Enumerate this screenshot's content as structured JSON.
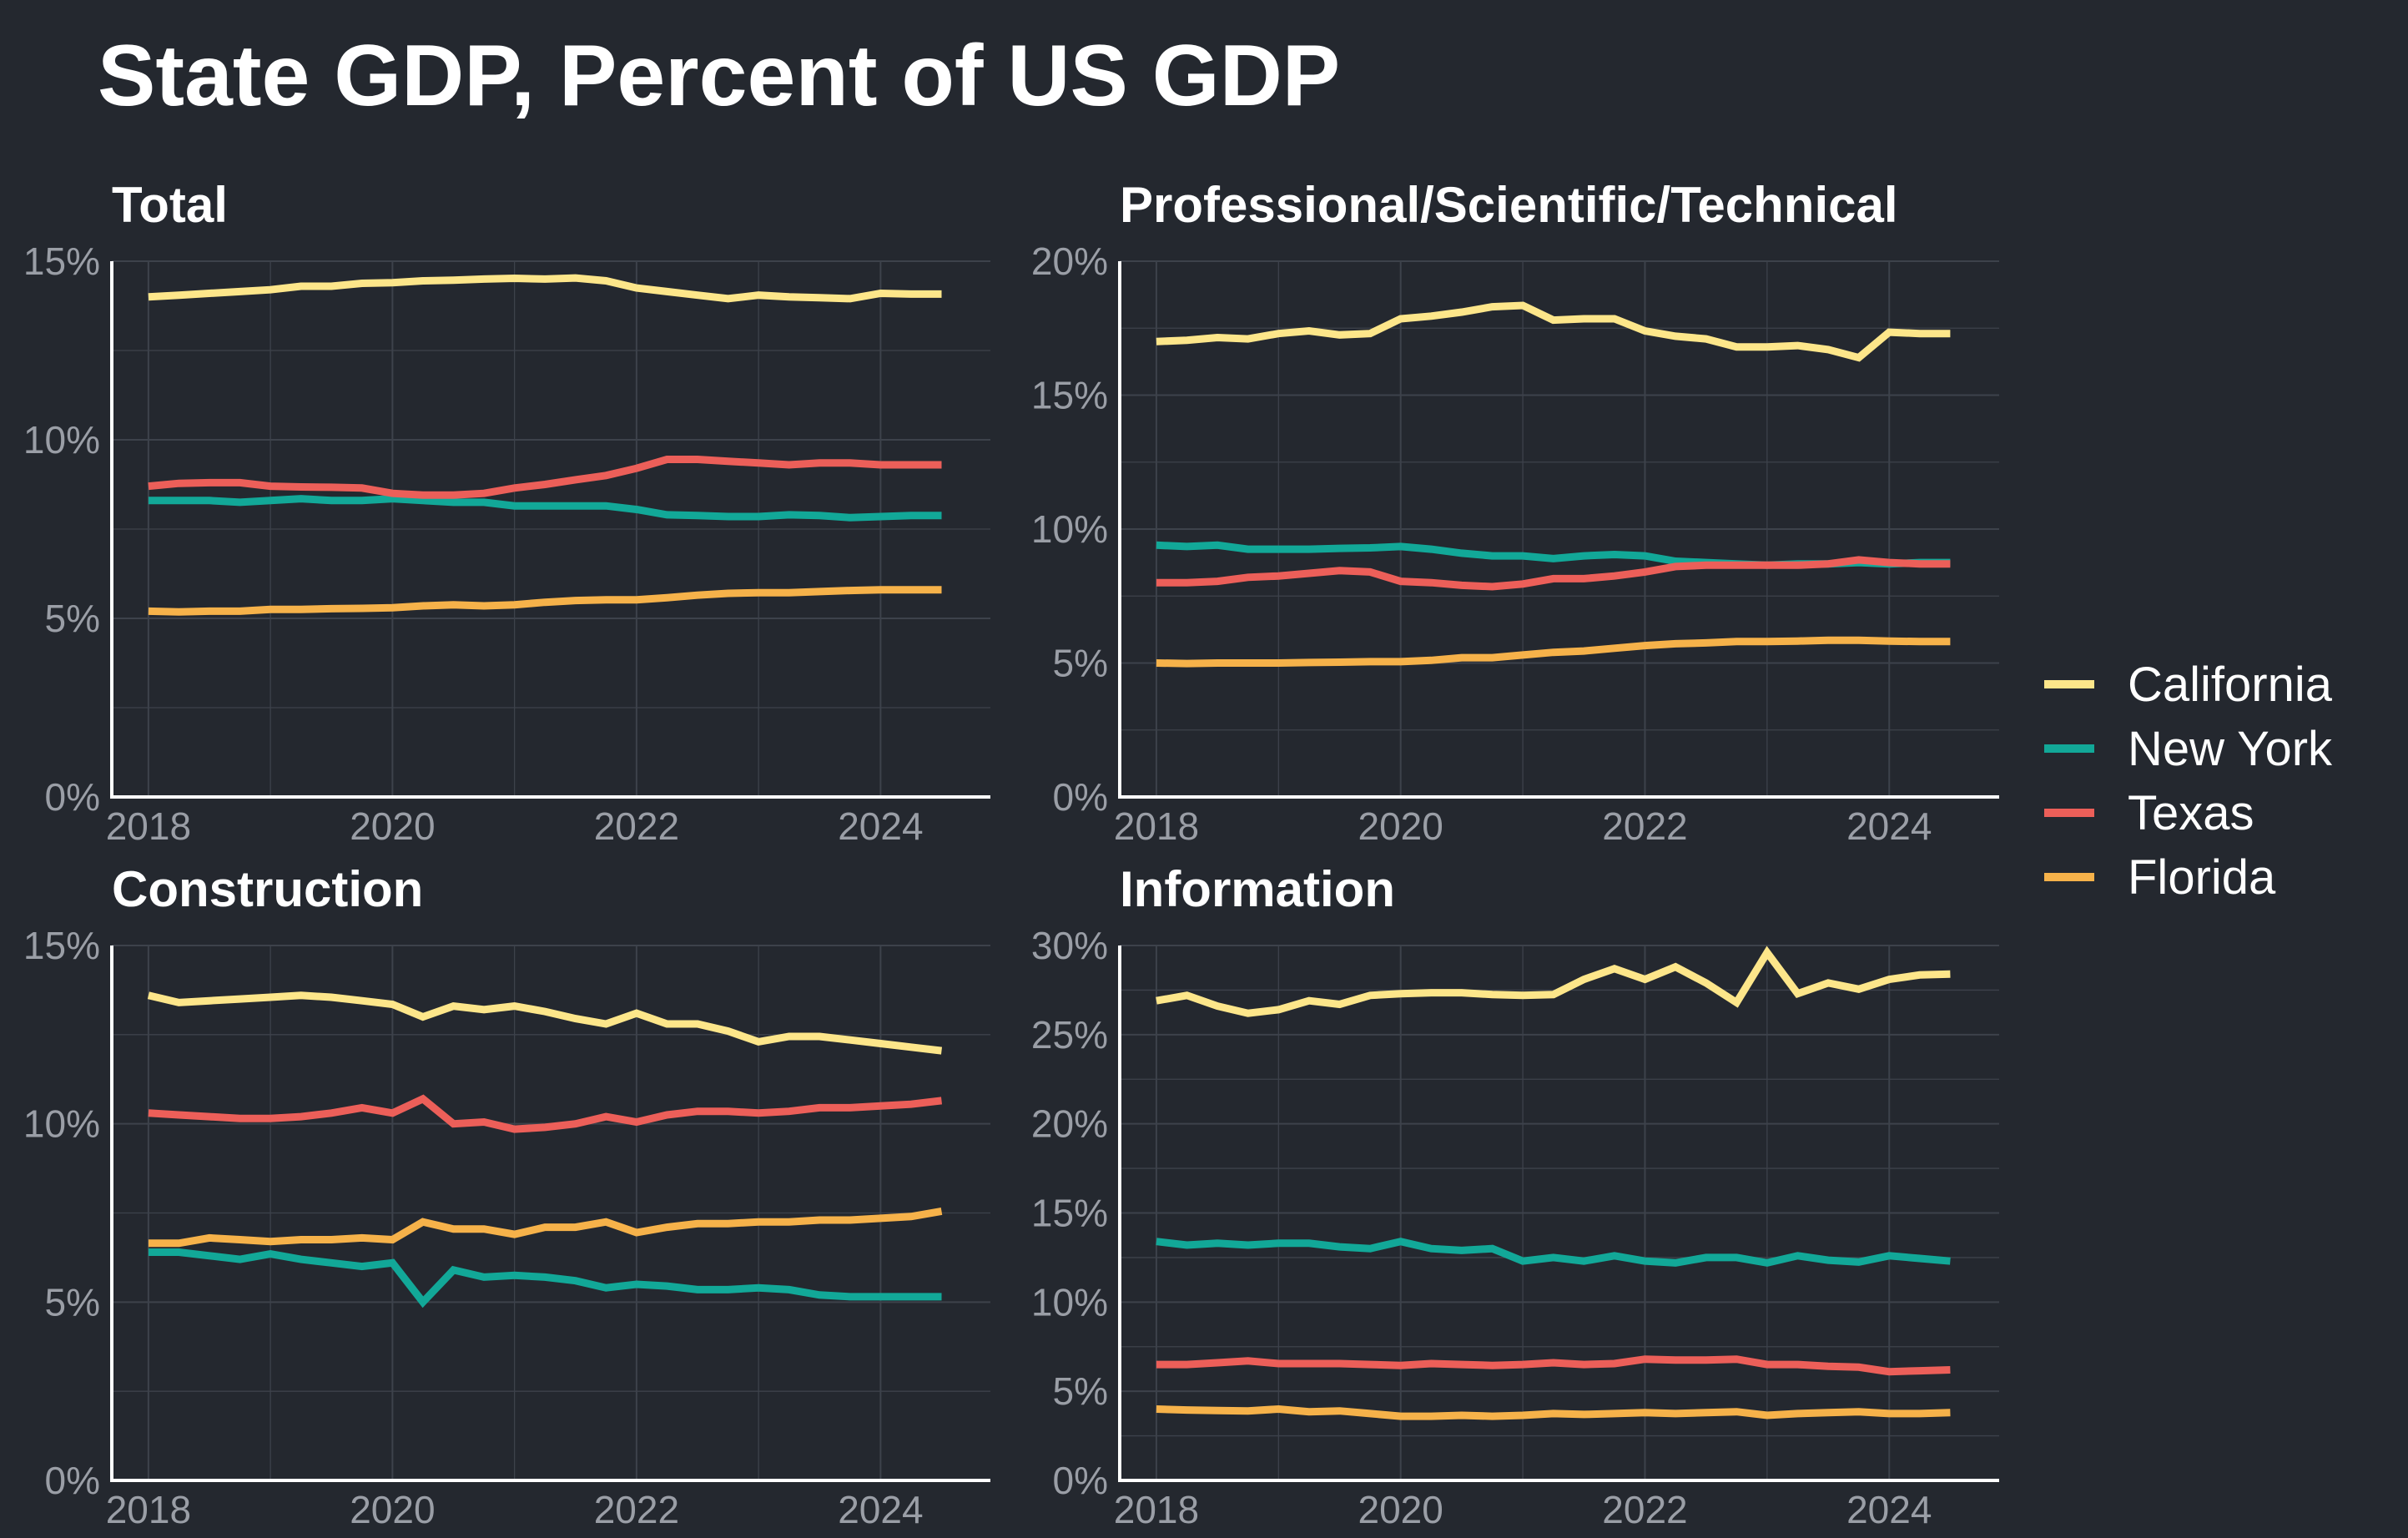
{
  "title": "State GDP, Percent of US GDP",
  "legend": {
    "position": "right",
    "items": [
      {
        "label": "California",
        "color": "#fde68a"
      },
      {
        "label": "New York",
        "color": "#12a898"
      },
      {
        "label": "Texas",
        "color": "#ec5f59"
      },
      {
        "label": "Florida",
        "color": "#f6b24a"
      }
    ]
  },
  "colors": {
    "background": "#24282f",
    "grid": "#3d424b",
    "axis": "#ffffff",
    "tick_label": "#9a9ea6"
  },
  "chart_data": [
    {
      "type": "line",
      "title": "Total",
      "x_ticks": [
        2018,
        2020,
        2022,
        2024
      ],
      "y_ticks": [
        0,
        5,
        10,
        15
      ],
      "y_tick_labels": [
        "0%",
        "5%",
        "10%",
        "15%"
      ],
      "ylim": [
        0,
        15
      ],
      "xlim": [
        2017.7,
        2024.9
      ],
      "grid": true,
      "x": [
        2018.0,
        2018.25,
        2018.5,
        2018.75,
        2019.0,
        2019.25,
        2019.5,
        2019.75,
        2020.0,
        2020.25,
        2020.5,
        2020.75,
        2021.0,
        2021.25,
        2021.5,
        2021.75,
        2022.0,
        2022.25,
        2022.5,
        2022.75,
        2023.0,
        2023.25,
        2023.5,
        2023.75,
        2024.0,
        2024.25,
        2024.5
      ],
      "series": [
        {
          "name": "California",
          "values": [
            14.0,
            14.05,
            14.1,
            14.15,
            14.2,
            14.3,
            14.3,
            14.38,
            14.4,
            14.45,
            14.47,
            14.5,
            14.52,
            14.5,
            14.53,
            14.45,
            14.25,
            14.15,
            14.05,
            13.95,
            14.05,
            14.0,
            13.98,
            13.95,
            14.1,
            14.08,
            14.08
          ]
        },
        {
          "name": "New York",
          "values": [
            8.3,
            8.3,
            8.3,
            8.25,
            8.3,
            8.35,
            8.3,
            8.3,
            8.35,
            8.3,
            8.25,
            8.25,
            8.15,
            8.15,
            8.15,
            8.15,
            8.05,
            7.9,
            7.88,
            7.85,
            7.85,
            7.9,
            7.88,
            7.82,
            7.85,
            7.88,
            7.88
          ]
        },
        {
          "name": "Texas",
          "values": [
            8.7,
            8.78,
            8.8,
            8.8,
            8.7,
            8.68,
            8.67,
            8.65,
            8.5,
            8.45,
            8.45,
            8.5,
            8.65,
            8.75,
            8.88,
            9.0,
            9.2,
            9.45,
            9.45,
            9.4,
            9.35,
            9.3,
            9.35,
            9.35,
            9.3,
            9.3,
            9.3
          ]
        },
        {
          "name": "Florida",
          "values": [
            5.2,
            5.18,
            5.2,
            5.2,
            5.25,
            5.25,
            5.27,
            5.28,
            5.3,
            5.35,
            5.38,
            5.35,
            5.38,
            5.45,
            5.5,
            5.52,
            5.52,
            5.58,
            5.65,
            5.7,
            5.72,
            5.72,
            5.75,
            5.78,
            5.8,
            5.8,
            5.8
          ]
        }
      ]
    },
    {
      "type": "line",
      "title": "Professional/Scientific/Technical",
      "x_ticks": [
        2018,
        2020,
        2022,
        2024
      ],
      "y_ticks": [
        0,
        5,
        10,
        15,
        20
      ],
      "y_tick_labels": [
        "0%",
        "5%",
        "10%",
        "15%",
        "20%"
      ],
      "ylim": [
        0,
        20
      ],
      "xlim": [
        2017.7,
        2024.9
      ],
      "grid": true,
      "x": [
        2018.0,
        2018.25,
        2018.5,
        2018.75,
        2019.0,
        2019.25,
        2019.5,
        2019.75,
        2020.0,
        2020.25,
        2020.5,
        2020.75,
        2021.0,
        2021.25,
        2021.5,
        2021.75,
        2022.0,
        2022.25,
        2022.5,
        2022.75,
        2023.0,
        2023.25,
        2023.5,
        2023.75,
        2024.0,
        2024.25,
        2024.5
      ],
      "series": [
        {
          "name": "California",
          "values": [
            17.0,
            17.05,
            17.15,
            17.1,
            17.3,
            17.4,
            17.25,
            17.3,
            17.85,
            17.95,
            18.1,
            18.3,
            18.35,
            17.8,
            17.85,
            17.85,
            17.4,
            17.2,
            17.1,
            16.8,
            16.8,
            16.85,
            16.7,
            16.4,
            17.35,
            17.3,
            17.3
          ]
        },
        {
          "name": "New York",
          "values": [
            9.4,
            9.35,
            9.4,
            9.25,
            9.25,
            9.25,
            9.28,
            9.3,
            9.35,
            9.25,
            9.1,
            9.0,
            9.0,
            8.9,
            9.0,
            9.05,
            9.0,
            8.8,
            8.75,
            8.7,
            8.65,
            8.7,
            8.7,
            8.75,
            8.7,
            8.75,
            8.75
          ]
        },
        {
          "name": "Texas",
          "values": [
            8.0,
            8.0,
            8.05,
            8.2,
            8.25,
            8.35,
            8.45,
            8.4,
            8.05,
            8.0,
            7.9,
            7.85,
            7.95,
            8.15,
            8.15,
            8.25,
            8.4,
            8.6,
            8.65,
            8.65,
            8.65,
            8.65,
            8.7,
            8.85,
            8.75,
            8.7,
            8.7
          ]
        },
        {
          "name": "Florida",
          "values": [
            5.0,
            4.98,
            5.0,
            5.0,
            5.0,
            5.02,
            5.03,
            5.05,
            5.05,
            5.1,
            5.2,
            5.2,
            5.3,
            5.4,
            5.45,
            5.55,
            5.65,
            5.72,
            5.75,
            5.8,
            5.8,
            5.82,
            5.85,
            5.85,
            5.82,
            5.8,
            5.8
          ]
        }
      ]
    },
    {
      "type": "line",
      "title": "Construction",
      "x_ticks": [
        2018,
        2020,
        2022,
        2024
      ],
      "y_ticks": [
        0,
        5,
        10,
        15
      ],
      "y_tick_labels": [
        "0%",
        "5%",
        "10%",
        "15%"
      ],
      "ylim": [
        0,
        15
      ],
      "xlim": [
        2017.7,
        2024.9
      ],
      "grid": true,
      "x": [
        2018.0,
        2018.25,
        2018.5,
        2018.75,
        2019.0,
        2019.25,
        2019.5,
        2019.75,
        2020.0,
        2020.25,
        2020.5,
        2020.75,
        2021.0,
        2021.25,
        2021.5,
        2021.75,
        2022.0,
        2022.25,
        2022.5,
        2022.75,
        2023.0,
        2023.25,
        2023.5,
        2023.75,
        2024.0,
        2024.25,
        2024.5
      ],
      "series": [
        {
          "name": "California",
          "values": [
            13.6,
            13.4,
            13.45,
            13.5,
            13.55,
            13.6,
            13.55,
            13.45,
            13.35,
            13.0,
            13.3,
            13.2,
            13.3,
            13.15,
            12.95,
            12.8,
            13.1,
            12.8,
            12.8,
            12.6,
            12.3,
            12.45,
            12.45,
            12.35,
            12.25,
            12.15,
            12.05
          ]
        },
        {
          "name": "New York",
          "values": [
            6.4,
            6.4,
            6.3,
            6.2,
            6.35,
            6.2,
            6.1,
            6.0,
            6.1,
            5.0,
            5.9,
            5.7,
            5.75,
            5.7,
            5.6,
            5.4,
            5.5,
            5.45,
            5.35,
            5.35,
            5.4,
            5.35,
            5.2,
            5.15,
            5.15,
            5.15,
            5.15
          ]
        },
        {
          "name": "Texas",
          "values": [
            10.3,
            10.25,
            10.2,
            10.15,
            10.15,
            10.2,
            10.3,
            10.45,
            10.3,
            10.7,
            10.0,
            10.05,
            9.85,
            9.9,
            10.0,
            10.2,
            10.05,
            10.25,
            10.35,
            10.35,
            10.3,
            10.35,
            10.45,
            10.45,
            10.5,
            10.55,
            10.65
          ]
        },
        {
          "name": "Florida",
          "values": [
            6.65,
            6.65,
            6.8,
            6.75,
            6.7,
            6.75,
            6.75,
            6.8,
            6.75,
            7.25,
            7.05,
            7.05,
            6.9,
            7.1,
            7.1,
            7.25,
            6.95,
            7.1,
            7.2,
            7.2,
            7.25,
            7.25,
            7.3,
            7.3,
            7.35,
            7.4,
            7.55
          ]
        }
      ]
    },
    {
      "type": "line",
      "title": "Information",
      "x_ticks": [
        2018,
        2020,
        2022,
        2024
      ],
      "y_ticks": [
        0,
        5,
        10,
        15,
        20,
        25,
        30
      ],
      "y_tick_labels": [
        "0%",
        "5%",
        "10%",
        "15%",
        "20%",
        "25%",
        "30%"
      ],
      "ylim": [
        0,
        30
      ],
      "xlim": [
        2017.7,
        2024.9
      ],
      "grid": true,
      "x": [
        2018.0,
        2018.25,
        2018.5,
        2018.75,
        2019.0,
        2019.25,
        2019.5,
        2019.75,
        2020.0,
        2020.25,
        2020.5,
        2020.75,
        2021.0,
        2021.25,
        2021.5,
        2021.75,
        2022.0,
        2022.25,
        2022.5,
        2022.75,
        2023.0,
        2023.25,
        2023.5,
        2023.75,
        2024.0,
        2024.25,
        2024.5
      ],
      "series": [
        {
          "name": "California",
          "values": [
            26.9,
            27.2,
            26.6,
            26.2,
            26.4,
            26.9,
            26.7,
            27.2,
            27.3,
            27.35,
            27.35,
            27.25,
            27.2,
            27.25,
            28.1,
            28.7,
            28.1,
            28.8,
            27.9,
            26.8,
            29.6,
            27.3,
            27.9,
            27.55,
            28.1,
            28.35,
            28.4
          ]
        },
        {
          "name": "New York",
          "values": [
            13.4,
            13.2,
            13.3,
            13.2,
            13.3,
            13.3,
            13.1,
            13.0,
            13.4,
            13.0,
            12.9,
            13.0,
            12.3,
            12.5,
            12.3,
            12.6,
            12.3,
            12.2,
            12.5,
            12.5,
            12.2,
            12.6,
            12.35,
            12.25,
            12.6,
            12.45,
            12.3
          ]
        },
        {
          "name": "Texas",
          "values": [
            6.5,
            6.5,
            6.6,
            6.7,
            6.55,
            6.55,
            6.55,
            6.5,
            6.45,
            6.55,
            6.5,
            6.45,
            6.5,
            6.6,
            6.5,
            6.55,
            6.8,
            6.75,
            6.75,
            6.8,
            6.5,
            6.5,
            6.4,
            6.35,
            6.1,
            6.15,
            6.2
          ]
        },
        {
          "name": "Florida",
          "values": [
            4.0,
            3.95,
            3.92,
            3.9,
            4.0,
            3.85,
            3.9,
            3.75,
            3.6,
            3.6,
            3.65,
            3.6,
            3.65,
            3.75,
            3.7,
            3.75,
            3.8,
            3.75,
            3.8,
            3.85,
            3.65,
            3.75,
            3.8,
            3.85,
            3.75,
            3.75,
            3.8
          ]
        }
      ]
    }
  ]
}
